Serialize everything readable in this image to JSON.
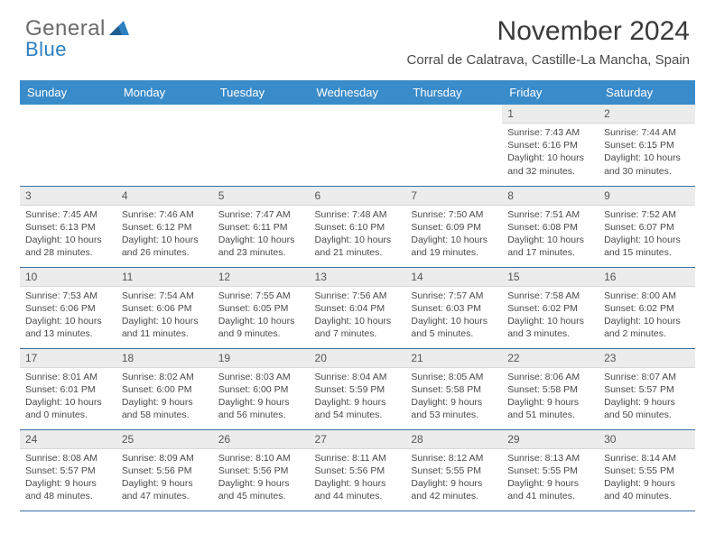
{
  "brand": {
    "line1": "General",
    "line2": "Blue"
  },
  "title": {
    "month": "November 2024",
    "location": "Corral de Calatrava, Castille-La Mancha, Spain"
  },
  "colors": {
    "header_bg": "#3a8bc9",
    "header_text": "#ffffff",
    "daynum_bg": "#ececec",
    "border": "#3a6fa0",
    "brand_blue": "#2d7fc1",
    "text": "#4a4a4a"
  },
  "weekdays": [
    "Sunday",
    "Monday",
    "Tuesday",
    "Wednesday",
    "Thursday",
    "Friday",
    "Saturday"
  ],
  "weeks": [
    [
      {
        "n": "",
        "sr": "",
        "ss": "",
        "dl": "",
        "empty": true
      },
      {
        "n": "",
        "sr": "",
        "ss": "",
        "dl": "",
        "empty": true
      },
      {
        "n": "",
        "sr": "",
        "ss": "",
        "dl": "",
        "empty": true
      },
      {
        "n": "",
        "sr": "",
        "ss": "",
        "dl": "",
        "empty": true
      },
      {
        "n": "",
        "sr": "",
        "ss": "",
        "dl": "",
        "empty": true
      },
      {
        "n": "1",
        "sr": "Sunrise: 7:43 AM",
        "ss": "Sunset: 6:16 PM",
        "dl": "Daylight: 10 hours and 32 minutes."
      },
      {
        "n": "2",
        "sr": "Sunrise: 7:44 AM",
        "ss": "Sunset: 6:15 PM",
        "dl": "Daylight: 10 hours and 30 minutes."
      }
    ],
    [
      {
        "n": "3",
        "sr": "Sunrise: 7:45 AM",
        "ss": "Sunset: 6:13 PM",
        "dl": "Daylight: 10 hours and 28 minutes."
      },
      {
        "n": "4",
        "sr": "Sunrise: 7:46 AM",
        "ss": "Sunset: 6:12 PM",
        "dl": "Daylight: 10 hours and 26 minutes."
      },
      {
        "n": "5",
        "sr": "Sunrise: 7:47 AM",
        "ss": "Sunset: 6:11 PM",
        "dl": "Daylight: 10 hours and 23 minutes."
      },
      {
        "n": "6",
        "sr": "Sunrise: 7:48 AM",
        "ss": "Sunset: 6:10 PM",
        "dl": "Daylight: 10 hours and 21 minutes."
      },
      {
        "n": "7",
        "sr": "Sunrise: 7:50 AM",
        "ss": "Sunset: 6:09 PM",
        "dl": "Daylight: 10 hours and 19 minutes."
      },
      {
        "n": "8",
        "sr": "Sunrise: 7:51 AM",
        "ss": "Sunset: 6:08 PM",
        "dl": "Daylight: 10 hours and 17 minutes."
      },
      {
        "n": "9",
        "sr": "Sunrise: 7:52 AM",
        "ss": "Sunset: 6:07 PM",
        "dl": "Daylight: 10 hours and 15 minutes."
      }
    ],
    [
      {
        "n": "10",
        "sr": "Sunrise: 7:53 AM",
        "ss": "Sunset: 6:06 PM",
        "dl": "Daylight: 10 hours and 13 minutes."
      },
      {
        "n": "11",
        "sr": "Sunrise: 7:54 AM",
        "ss": "Sunset: 6:06 PM",
        "dl": "Daylight: 10 hours and 11 minutes."
      },
      {
        "n": "12",
        "sr": "Sunrise: 7:55 AM",
        "ss": "Sunset: 6:05 PM",
        "dl": "Daylight: 10 hours and 9 minutes."
      },
      {
        "n": "13",
        "sr": "Sunrise: 7:56 AM",
        "ss": "Sunset: 6:04 PM",
        "dl": "Daylight: 10 hours and 7 minutes."
      },
      {
        "n": "14",
        "sr": "Sunrise: 7:57 AM",
        "ss": "Sunset: 6:03 PM",
        "dl": "Daylight: 10 hours and 5 minutes."
      },
      {
        "n": "15",
        "sr": "Sunrise: 7:58 AM",
        "ss": "Sunset: 6:02 PM",
        "dl": "Daylight: 10 hours and 3 minutes."
      },
      {
        "n": "16",
        "sr": "Sunrise: 8:00 AM",
        "ss": "Sunset: 6:02 PM",
        "dl": "Daylight: 10 hours and 2 minutes."
      }
    ],
    [
      {
        "n": "17",
        "sr": "Sunrise: 8:01 AM",
        "ss": "Sunset: 6:01 PM",
        "dl": "Daylight: 10 hours and 0 minutes."
      },
      {
        "n": "18",
        "sr": "Sunrise: 8:02 AM",
        "ss": "Sunset: 6:00 PM",
        "dl": "Daylight: 9 hours and 58 minutes."
      },
      {
        "n": "19",
        "sr": "Sunrise: 8:03 AM",
        "ss": "Sunset: 6:00 PM",
        "dl": "Daylight: 9 hours and 56 minutes."
      },
      {
        "n": "20",
        "sr": "Sunrise: 8:04 AM",
        "ss": "Sunset: 5:59 PM",
        "dl": "Daylight: 9 hours and 54 minutes."
      },
      {
        "n": "21",
        "sr": "Sunrise: 8:05 AM",
        "ss": "Sunset: 5:58 PM",
        "dl": "Daylight: 9 hours and 53 minutes."
      },
      {
        "n": "22",
        "sr": "Sunrise: 8:06 AM",
        "ss": "Sunset: 5:58 PM",
        "dl": "Daylight: 9 hours and 51 minutes."
      },
      {
        "n": "23",
        "sr": "Sunrise: 8:07 AM",
        "ss": "Sunset: 5:57 PM",
        "dl": "Daylight: 9 hours and 50 minutes."
      }
    ],
    [
      {
        "n": "24",
        "sr": "Sunrise: 8:08 AM",
        "ss": "Sunset: 5:57 PM",
        "dl": "Daylight: 9 hours and 48 minutes."
      },
      {
        "n": "25",
        "sr": "Sunrise: 8:09 AM",
        "ss": "Sunset: 5:56 PM",
        "dl": "Daylight: 9 hours and 47 minutes."
      },
      {
        "n": "26",
        "sr": "Sunrise: 8:10 AM",
        "ss": "Sunset: 5:56 PM",
        "dl": "Daylight: 9 hours and 45 minutes."
      },
      {
        "n": "27",
        "sr": "Sunrise: 8:11 AM",
        "ss": "Sunset: 5:56 PM",
        "dl": "Daylight: 9 hours and 44 minutes."
      },
      {
        "n": "28",
        "sr": "Sunrise: 8:12 AM",
        "ss": "Sunset: 5:55 PM",
        "dl": "Daylight: 9 hours and 42 minutes."
      },
      {
        "n": "29",
        "sr": "Sunrise: 8:13 AM",
        "ss": "Sunset: 5:55 PM",
        "dl": "Daylight: 9 hours and 41 minutes."
      },
      {
        "n": "30",
        "sr": "Sunrise: 8:14 AM",
        "ss": "Sunset: 5:55 PM",
        "dl": "Daylight: 9 hours and 40 minutes."
      }
    ]
  ]
}
